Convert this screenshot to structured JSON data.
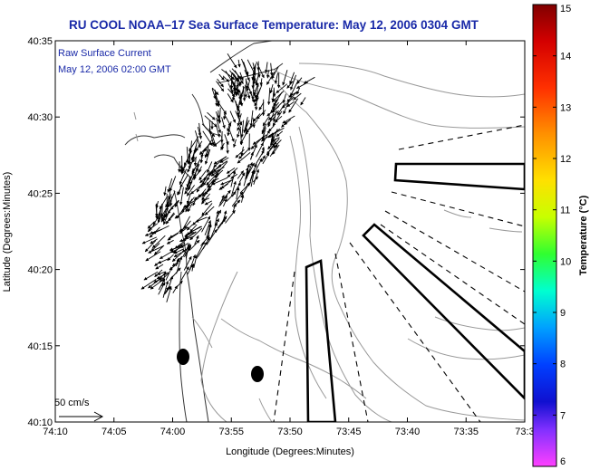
{
  "title": "RU COOL  NOAA–17  Sea Surface Temperature:  May 12, 2006 0304 GMT",
  "legend": {
    "line1": "Raw Surface Current",
    "line2": "May 12, 2006 02:00 GMT"
  },
  "scale_arrow": {
    "label": "50 cm/s"
  },
  "axes": {
    "xlabel": "Longitude (Degrees:Minutes)",
    "ylabel": "Latitude (Degrees:Minutes)",
    "xticks": [
      "74:10",
      "74:05",
      "74:00",
      "73:55",
      "73:50",
      "73:45",
      "73:40",
      "73:35",
      "73:3"
    ],
    "yticks": [
      "40:35",
      "40:30",
      "40:25",
      "40:20",
      "40:15",
      "40:10"
    ]
  },
  "colorbar": {
    "label": "Temperature (°C)",
    "ticks": [
      "15",
      "14",
      "13",
      "12",
      "11",
      "10",
      "9",
      "8",
      "7",
      "6"
    ],
    "min": 6,
    "max": 15
  },
  "colors": {
    "title": "#1a2aa8",
    "land_outline": "#333333",
    "contour": "#999999",
    "vector": "#000000"
  }
}
